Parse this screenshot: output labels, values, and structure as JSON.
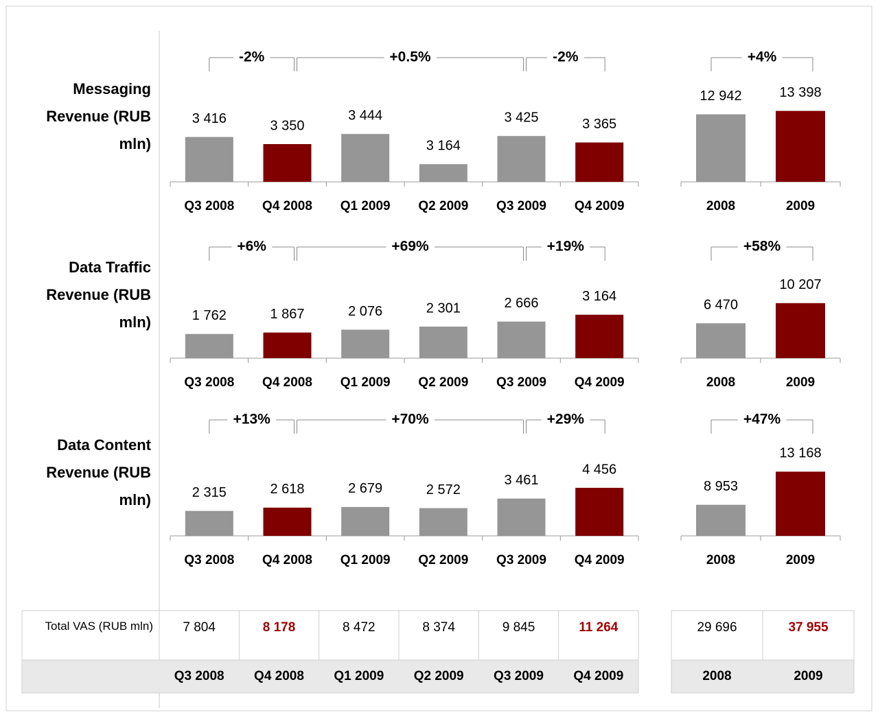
{
  "chart_data": [
    {
      "type": "bar",
      "title": "Messaging Revenue (RUB mln)",
      "categories": [
        "Q3 2008",
        "Q4 2008",
        "Q1 2009",
        "Q2 2009",
        "Q3 2009",
        "Q4 2009"
      ],
      "values": [
        3416,
        3350,
        3444,
        3164,
        3425,
        3365
      ],
      "value_labels": [
        "3 416",
        "3 350",
        "3 444",
        "3 164",
        "3 425",
        "3 365"
      ],
      "colors": [
        "#969696",
        "#800000",
        "#969696",
        "#969696",
        "#969696",
        "#800000"
      ],
      "ylim": [
        3000,
        3700
      ],
      "annotations": [
        "-2%",
        "+0.5%",
        "-2%"
      ]
    },
    {
      "type": "bar",
      "categories": [
        "2008",
        "2009"
      ],
      "values": [
        12942,
        13398
      ],
      "value_labels": [
        "12 942",
        "13 398"
      ],
      "colors": [
        "#969696",
        "#800000"
      ],
      "ylim": [
        4000,
        14000
      ],
      "annotations": [
        "+4%"
      ]
    },
    {
      "type": "bar",
      "title": "Data Traffic Revenue (RUB mln)",
      "categories": [
        "Q3 2008",
        "Q4 2008",
        "Q1 2009",
        "Q2 2009",
        "Q3 2009",
        "Q4 2009"
      ],
      "values": [
        1762,
        1867,
        2076,
        2301,
        2666,
        3164
      ],
      "value_labels": [
        "1 762",
        "1 867",
        "2 076",
        "2 301",
        "2 666",
        "3 164"
      ],
      "colors": [
        "#969696",
        "#800000",
        "#969696",
        "#969696",
        "#969696",
        "#800000"
      ],
      "ylim": [
        0,
        5500
      ],
      "annotations": [
        "+6%",
        "+69%",
        "+19%"
      ]
    },
    {
      "type": "bar",
      "categories": [
        "2008",
        "2009"
      ],
      "values": [
        6470,
        10207
      ],
      "value_labels": [
        "6 470",
        "10 207"
      ],
      "colors": [
        "#969696",
        "#800000"
      ],
      "ylim": [
        0,
        14000
      ],
      "annotations": [
        "+58%"
      ]
    },
    {
      "type": "bar",
      "title": "Data Content Revenue (RUB mln)",
      "categories": [
        "Q3 2008",
        "Q4 2008",
        "Q1 2009",
        "Q2 2009",
        "Q3 2009",
        "Q4 2009"
      ],
      "values": [
        2315,
        2618,
        2679,
        2572,
        3461,
        4456
      ],
      "value_labels": [
        "2 315",
        "2 618",
        "2 679",
        "2 572",
        "3 461",
        "4 456"
      ],
      "colors": [
        "#969696",
        "#800000",
        "#969696",
        "#969696",
        "#969696",
        "#800000"
      ],
      "ylim": [
        0,
        7000
      ],
      "annotations": [
        "+13%",
        "+70%",
        "+29%"
      ]
    },
    {
      "type": "bar",
      "categories": [
        "2008",
        "2009"
      ],
      "values": [
        8953,
        13168
      ],
      "value_labels": [
        "8 953",
        "13 168"
      ],
      "colors": [
        "#969696",
        "#800000"
      ],
      "ylim": [
        5000,
        14600
      ],
      "annotations": [
        "+47%"
      ]
    }
  ],
  "table": {
    "row_label": "Total VAS (RUB mln)",
    "quarterly": {
      "headers": [
        "Q3 2008",
        "Q4 2008",
        "Q1 2009",
        "Q2 2009",
        "Q3 2009",
        "Q4 2009"
      ],
      "values": [
        "7 804",
        "8 178",
        "8 472",
        "8 374",
        "9 845",
        "11 264"
      ],
      "value_colors": [
        "#000000",
        "#a00000",
        "#000000",
        "#000000",
        "#000000",
        "#a00000"
      ]
    },
    "annual": {
      "headers": [
        "2008",
        "2009"
      ],
      "values": [
        "29 696",
        "37 955"
      ],
      "value_colors": [
        "#000000",
        "#a00000"
      ]
    }
  }
}
